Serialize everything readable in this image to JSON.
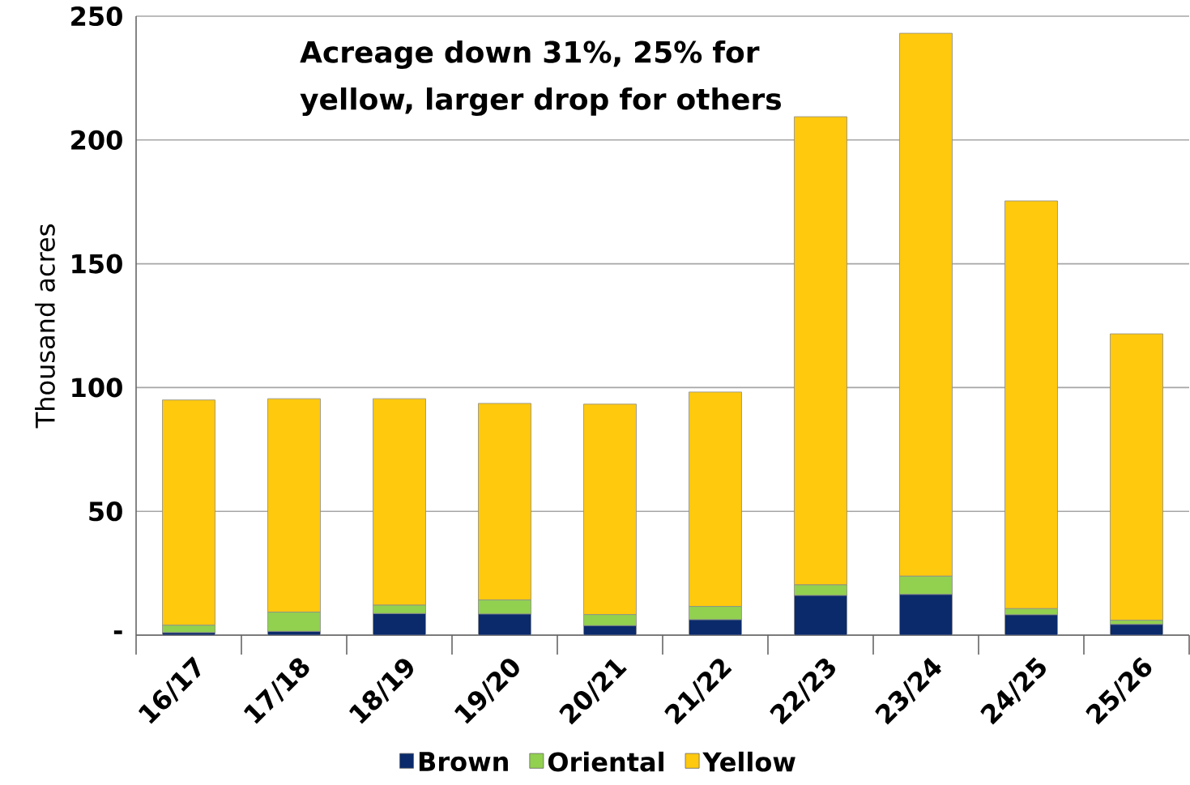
{
  "chart_data": {
    "type": "bar",
    "stacked": true,
    "title": "Acreage down 31%, 25% for yellow, larger drop for others",
    "ylabel": "Thousand acres",
    "categories": [
      "16/17",
      "17/18",
      "18/19",
      "19/20",
      "20/21",
      "21/22",
      "22/23",
      "23/24",
      "24/25",
      "25/26"
    ],
    "series": [
      {
        "name": "Brown",
        "color": "#0a2a6b",
        "values": [
          1,
          1.5,
          8.7,
          8.5,
          3.8,
          6.2,
          16,
          16.4,
          8.2,
          4.3
        ]
      },
      {
        "name": "Oriental",
        "color": "#92d050",
        "values": [
          3,
          7.8,
          3.4,
          5.7,
          4.5,
          5.4,
          4.3,
          7.4,
          2.5,
          1.7
        ]
      },
      {
        "name": "Yellow",
        "color": "#ffc90e",
        "values": [
          91,
          86.2,
          83.4,
          79.4,
          85,
          86.6,
          189.1,
          219.3,
          164.7,
          115.7
        ]
      }
    ],
    "ylim": [
      0,
      250
    ],
    "yticks": [
      {
        "value": 0,
        "label": "-"
      },
      50,
      100,
      150,
      200,
      250
    ],
    "grid": "y",
    "legend": "bottom"
  }
}
